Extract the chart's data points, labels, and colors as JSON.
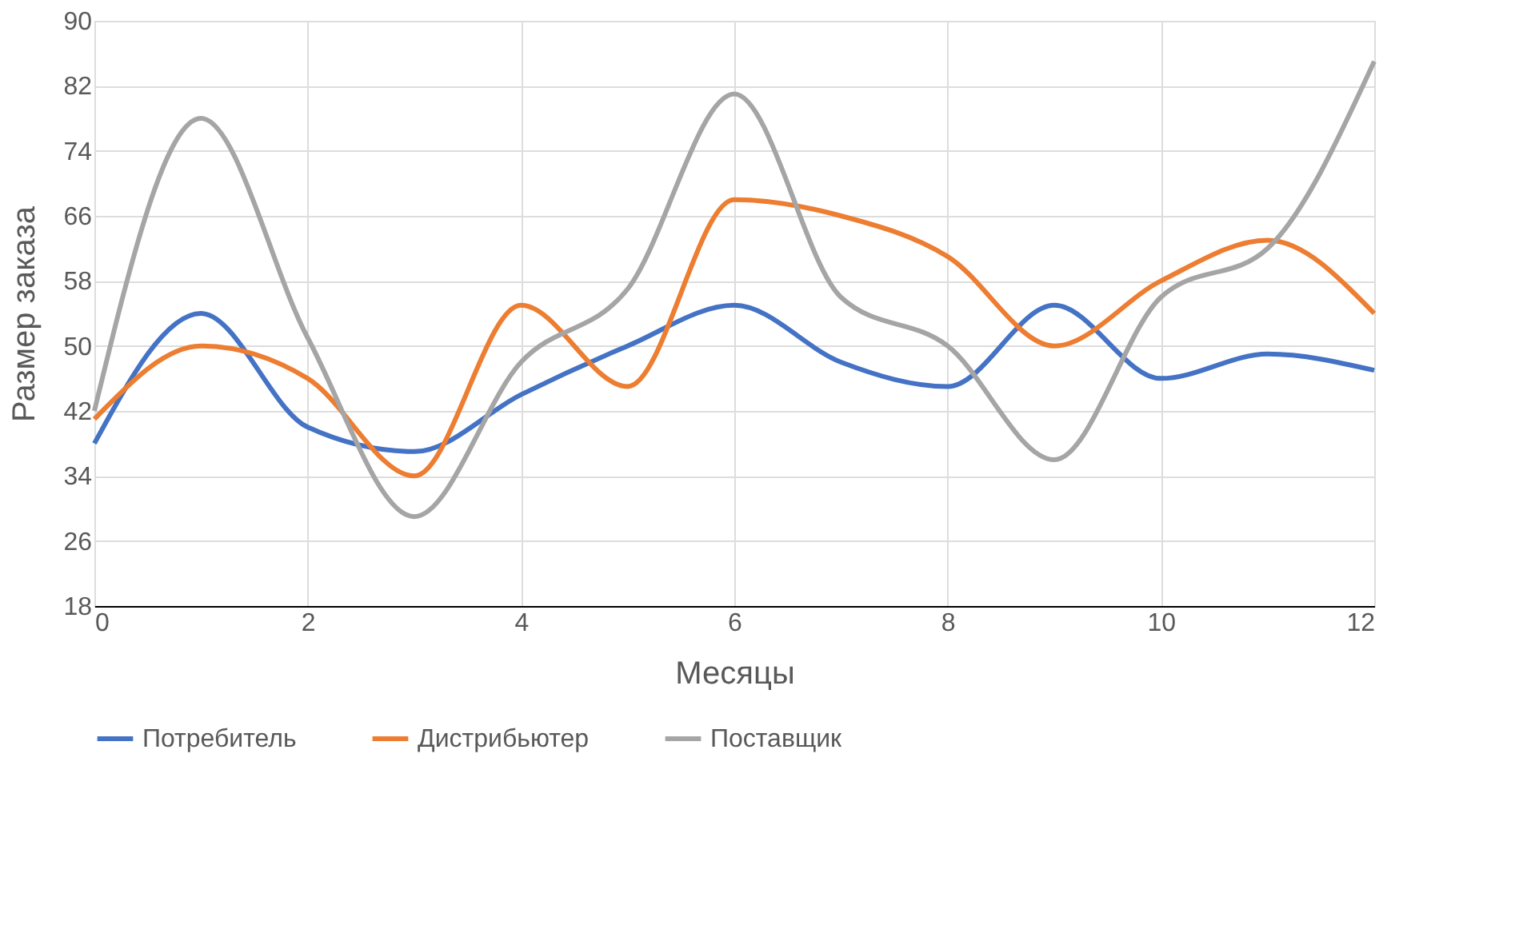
{
  "chart_data": {
    "type": "line",
    "xlabel": "Месяцы",
    "ylabel": "Размер заказа",
    "x": [
      0,
      1,
      2,
      3,
      4,
      5,
      6,
      7,
      8,
      9,
      10,
      11,
      12
    ],
    "series": [
      {
        "name": "Потребитель",
        "color": "#4472c4",
        "values": [
          38,
          54,
          40,
          37,
          44,
          50,
          55,
          48,
          45,
          55,
          46,
          49,
          47
        ]
      },
      {
        "name": "Дистрибьютер",
        "color": "#ed7d31",
        "values": [
          41,
          50,
          46,
          34,
          55,
          45,
          68,
          66,
          61,
          50,
          58,
          63,
          54
        ]
      },
      {
        "name": "Поставщик",
        "color": "#a5a5a5",
        "values": [
          42,
          78,
          51,
          29,
          48,
          57,
          81,
          56,
          50,
          36,
          56,
          62,
          85
        ]
      }
    ],
    "xlim": [
      0,
      12
    ],
    "xticks": [
      0,
      2,
      4,
      6,
      8,
      10,
      12
    ],
    "ylim": [
      18,
      90
    ],
    "yticks": [
      18,
      26,
      34,
      42,
      50,
      58,
      66,
      74,
      82,
      90
    ],
    "grid": true,
    "legend": "bottom",
    "marker": "none",
    "line_style": "solid"
  }
}
